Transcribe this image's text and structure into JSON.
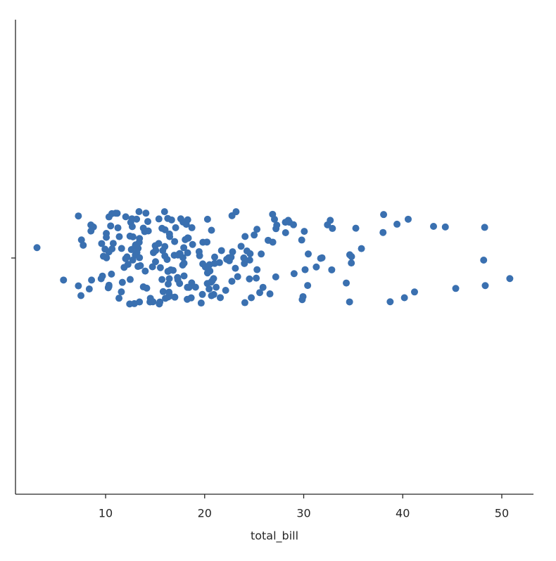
{
  "chart_data": {
    "type": "strip",
    "xlabel": "total_bill",
    "categories": [
      null
    ],
    "values": [
      16.99,
      10.34,
      21.01,
      23.68,
      24.59,
      25.29,
      8.77,
      26.88,
      15.04,
      14.78,
      10.27,
      35.26,
      15.42,
      18.43,
      14.83,
      21.58,
      10.33,
      16.29,
      16.97,
      20.65,
      17.92,
      20.29,
      15.77,
      39.42,
      19.82,
      17.81,
      13.37,
      12.69,
      21.7,
      19.65,
      9.55,
      18.35,
      15.06,
      20.69,
      17.78,
      24.06,
      16.31,
      16.93,
      18.69,
      31.27,
      16.04,
      17.46,
      13.94,
      9.68,
      30.4,
      18.29,
      22.23,
      32.4,
      28.55,
      18.04,
      12.54,
      10.29,
      34.81,
      9.94,
      25.56,
      19.49,
      38.01,
      26.41,
      11.24,
      48.27,
      20.29,
      13.81,
      11.02,
      18.29,
      17.59,
      20.08,
      16.45,
      3.07,
      20.23,
      15.01,
      12.02,
      17.07,
      26.86,
      25.28,
      14.73,
      10.51,
      17.92,
      27.2,
      22.76,
      17.29,
      19.44,
      16.66,
      10.07,
      32.68,
      15.98,
      34.83,
      13.03,
      18.28,
      24.71,
      21.16,
      28.97,
      22.49,
      5.75,
      16.32,
      22.75,
      40.17,
      27.28,
      12.03,
      21.01,
      12.46,
      11.35,
      15.38,
      44.3,
      22.42,
      20.92,
      15.36,
      20.49,
      25.21,
      18.24,
      14.31,
      14.0,
      7.25,
      38.07,
      23.95,
      25.71,
      17.31,
      29.93,
      10.65,
      12.43,
      24.08,
      11.69,
      13.42,
      14.26,
      15.95,
      12.48,
      29.8,
      8.52,
      14.52,
      11.38,
      22.82,
      19.08,
      20.27,
      11.17,
      12.26,
      18.26,
      8.51,
      10.33,
      14.15,
      16.0,
      13.16,
      17.47,
      34.3,
      41.19,
      27.05,
      16.43,
      8.35,
      18.64,
      11.87,
      9.78,
      7.51,
      14.07,
      13.13,
      17.26,
      24.55,
      19.77,
      29.85,
      48.17,
      25.0,
      13.39,
      16.49,
      21.5,
      12.66,
      16.21,
      13.81,
      17.51,
      24.52,
      20.76,
      31.71,
      10.59,
      10.63,
      50.81,
      15.81,
      7.25,
      31.85,
      16.82,
      32.9,
      17.89,
      14.48,
      9.6,
      34.63,
      34.65,
      23.33,
      45.35,
      23.17,
      40.55,
      20.69,
      20.9,
      30.46,
      18.15,
      23.1,
      15.69,
      19.81,
      28.44,
      15.48,
      16.58,
      7.56,
      10.34,
      43.11,
      13.0,
      13.51,
      18.71,
      12.74,
      13.0,
      16.4,
      20.53,
      16.47,
      26.59,
      38.73,
      24.27,
      12.76,
      30.06,
      25.89,
      48.33,
      13.27,
      28.17,
      12.9,
      28.15,
      11.59,
      7.74,
      30.14,
      12.16,
      13.42,
      8.58,
      15.98,
      13.42,
      16.27,
      10.09,
      20.45,
      13.28,
      22.12,
      24.01,
      15.69,
      11.61,
      10.77,
      15.53,
      10.07,
      12.6,
      32.83,
      35.83,
      29.03,
      27.18,
      22.67,
      17.82,
      18.78
    ],
    "color": "#3a70b0",
    "xlim": [
      0.9,
      53.2
    ],
    "xticks": [
      10,
      20,
      30,
      40,
      50
    ]
  }
}
